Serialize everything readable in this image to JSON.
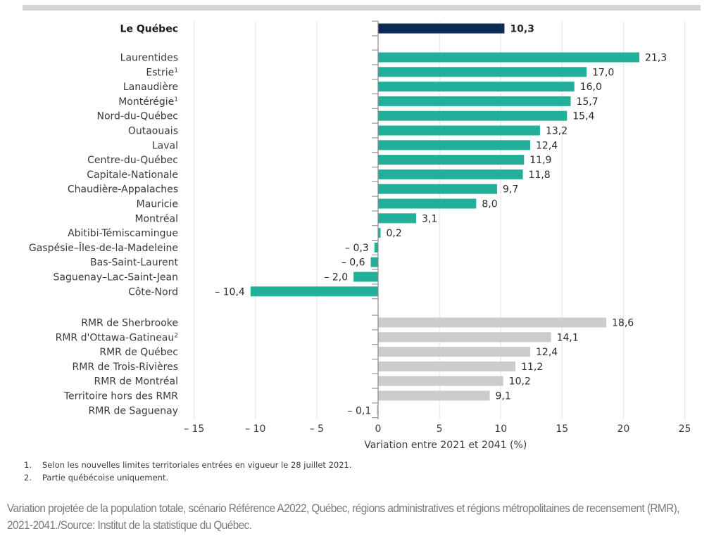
{
  "chart_data": {
    "type": "bar",
    "orientation": "horizontal",
    "xlabel": "Variation entre 2021 et 2041 (%)",
    "ylabel": "",
    "xlim": [
      -15,
      25
    ],
    "xticks": [
      -15,
      -10,
      -5,
      0,
      5,
      10,
      15,
      20,
      25
    ],
    "xtick_labels": [
      "– 15",
      "– 10",
      "– 5",
      "0",
      "5",
      "10",
      "15",
      "20",
      "25"
    ],
    "grid": true,
    "colors": {
      "total": "#0b2a55",
      "regions": "#22b09a",
      "rmr": "#cccccc"
    },
    "groups": [
      {
        "name": "total",
        "categories": [
          {
            "label": "Le Québec",
            "sup": "",
            "value": 10.3,
            "value_label": "10,3",
            "bold": true
          }
        ]
      },
      {
        "name": "regions",
        "categories": [
          {
            "label": "Laurentides",
            "sup": "",
            "value": 21.3,
            "value_label": "21,3"
          },
          {
            "label": "Estrie",
            "sup": "1",
            "value": 17.0,
            "value_label": "17,0"
          },
          {
            "label": "Lanaudière",
            "sup": "",
            "value": 16.0,
            "value_label": "16,0"
          },
          {
            "label": "Montérégie",
            "sup": "1",
            "value": 15.7,
            "value_label": "15,7"
          },
          {
            "label": "Nord-du-Québec",
            "sup": "",
            "value": 15.4,
            "value_label": "15,4"
          },
          {
            "label": "Outaouais",
            "sup": "",
            "value": 13.2,
            "value_label": "13,2"
          },
          {
            "label": "Laval",
            "sup": "",
            "value": 12.4,
            "value_label": "12,4"
          },
          {
            "label": "Centre-du-Québec",
            "sup": "",
            "value": 11.9,
            "value_label": "11,9"
          },
          {
            "label": "Capitale-Nationale",
            "sup": "",
            "value": 11.8,
            "value_label": "11,8"
          },
          {
            "label": "Chaudière-Appalaches",
            "sup": "",
            "value": 9.7,
            "value_label": "9,7"
          },
          {
            "label": "Mauricie",
            "sup": "",
            "value": 8.0,
            "value_label": "8,0"
          },
          {
            "label": "Montréal",
            "sup": "",
            "value": 3.1,
            "value_label": "3,1"
          },
          {
            "label": "Abitibi-Témiscamingue",
            "sup": "",
            "value": 0.2,
            "value_label": "0,2"
          },
          {
            "label": "Gaspésie–Îles-de-la-Madeleine",
            "sup": "",
            "value": -0.3,
            "value_label": "– 0,3"
          },
          {
            "label": "Bas-Saint-Laurent",
            "sup": "",
            "value": -0.6,
            "value_label": "– 0,6"
          },
          {
            "label": "Saguenay–Lac-Saint-Jean",
            "sup": "",
            "value": -2.0,
            "value_label": "– 2,0"
          },
          {
            "label": "Côte-Nord",
            "sup": "",
            "value": -10.4,
            "value_label": "– 10,4"
          }
        ]
      },
      {
        "name": "rmr",
        "categories": [
          {
            "label": "RMR de Sherbrooke",
            "sup": "",
            "value": 18.6,
            "value_label": "18,6"
          },
          {
            "label": "RMR d'Ottawa-Gatineau",
            "sup": "2",
            "value": 14.1,
            "value_label": "14,1"
          },
          {
            "label": "RMR de Québec",
            "sup": "",
            "value": 12.4,
            "value_label": "12,4"
          },
          {
            "label": "RMR de Trois-Rivières",
            "sup": "",
            "value": 11.2,
            "value_label": "11,2"
          },
          {
            "label": "RMR de Montréal",
            "sup": "",
            "value": 10.2,
            "value_label": "10,2"
          },
          {
            "label": "Territoire hors des RMR",
            "sup": "",
            "value": 9.1,
            "value_label": "9,1"
          },
          {
            "label": "RMR de Saguenay",
            "sup": "",
            "value": -0.1,
            "value_label": "– 0,1"
          }
        ]
      }
    ]
  },
  "footnotes": [
    {
      "num": "1.",
      "text": "Selon les nouvelles limites territoriales entrées en vigueur le 28 juillet 2021."
    },
    {
      "num": "2.",
      "text": "Partie québécoise uniquement."
    }
  ],
  "caption": "Variation projetée de la population totale, scénario Référence A2022, Québec, régions administratives et régions métropolitaines de recensement (RMR), 2021-2041./Source: Institut de la statistique du Québec."
}
